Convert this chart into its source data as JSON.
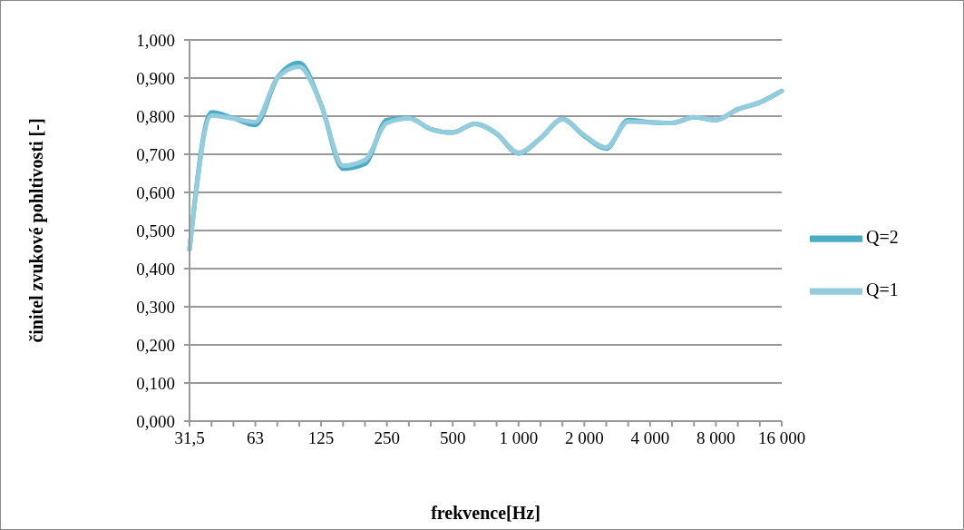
{
  "chart_data": {
    "type": "line",
    "xlabel": "frekvence[Hz]",
    "ylabel": "činitel zvukové pohltivosti [-]",
    "categories": [
      "31,5",
      null,
      null,
      "63",
      null,
      null,
      "125",
      null,
      null,
      "250",
      null,
      null,
      "500",
      null,
      null,
      "1 000",
      null,
      null,
      "2 000",
      null,
      null,
      "4 000",
      null,
      null,
      "8 000",
      null,
      null,
      "16 000"
    ],
    "series": [
      {
        "name": "Q=2",
        "color": "#4bacc6",
        "values": [
          0.45,
          0.81,
          0.795,
          0.777,
          0.9,
          0.94,
          0.83,
          0.662,
          0.675,
          0.79,
          0.795,
          0.766,
          0.757,
          0.78,
          0.754,
          0.702,
          0.742,
          0.792,
          0.748,
          0.715,
          0.79,
          0.784,
          0.782,
          0.797,
          0.79,
          0.818,
          0.836,
          0.866
        ]
      },
      {
        "name": "Q=1",
        "color": "#93cddd",
        "values": [
          0.45,
          0.802,
          0.794,
          0.785,
          0.9,
          0.93,
          0.83,
          0.67,
          0.685,
          0.782,
          0.794,
          0.766,
          0.757,
          0.78,
          0.754,
          0.704,
          0.742,
          0.792,
          0.75,
          0.718,
          0.786,
          0.784,
          0.782,
          0.797,
          0.79,
          0.818,
          0.836,
          0.866
        ]
      }
    ],
    "ylim": [
      0,
      1
    ],
    "yticks": [
      {
        "value": 0,
        "label": "0,000"
      },
      {
        "value": 0.1,
        "label": "0,100"
      },
      {
        "value": 0.2,
        "label": "0,200"
      },
      {
        "value": 0.3,
        "label": "0,300"
      },
      {
        "value": 0.4,
        "label": "0,400"
      },
      {
        "value": 0.5,
        "label": "0,500"
      },
      {
        "value": 0.6,
        "label": "0,600"
      },
      {
        "value": 0.7,
        "label": "0,700"
      },
      {
        "value": 0.8,
        "label": "0,800"
      },
      {
        "value": 0.9,
        "label": "0,900"
      },
      {
        "value": 1,
        "label": "1,000"
      }
    ],
    "grid": "y",
    "legend": "right",
    "marker": "none",
    "line_style": "solid"
  }
}
